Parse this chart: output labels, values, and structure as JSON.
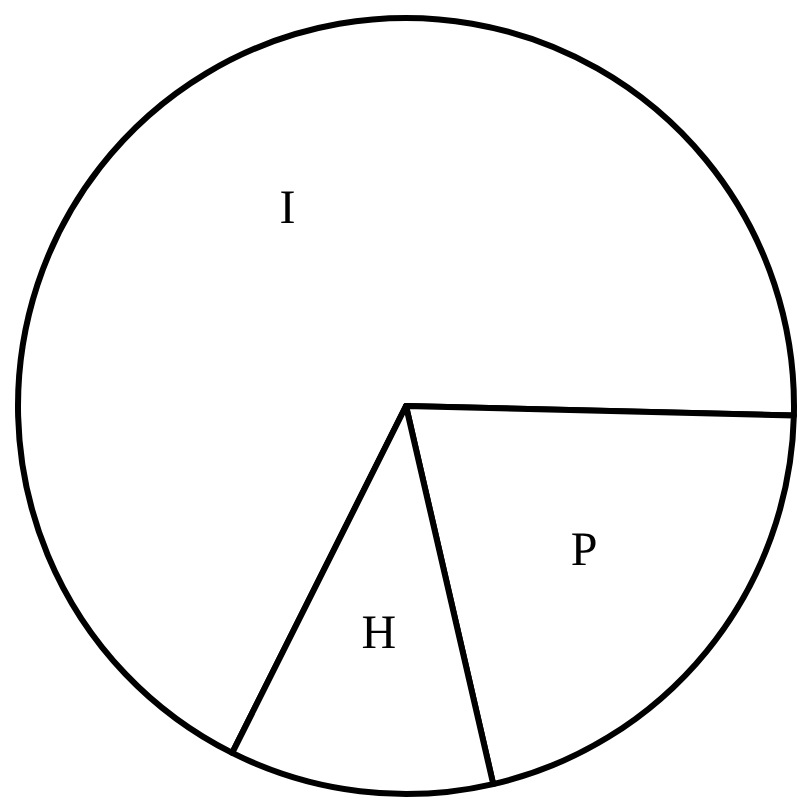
{
  "chart_data": {
    "type": "pie",
    "categories": [
      "I",
      "P",
      "H"
    ],
    "values": [
      68,
      21,
      11
    ],
    "colors": [
      "#ffffff",
      "#ffffff",
      "#ffffff"
    ]
  }
}
